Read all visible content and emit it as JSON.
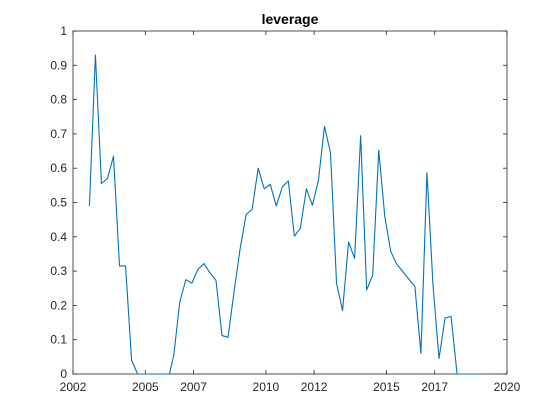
{
  "chart_data": {
    "type": "line",
    "title": "leverage",
    "xlabel": "",
    "ylabel": "",
    "xlim": [
      2002,
      2020
    ],
    "ylim": [
      0,
      1
    ],
    "grid": false,
    "legend": "none",
    "xticks": [
      2002,
      2005,
      2007,
      2010,
      2012,
      2015,
      2017,
      2020
    ],
    "yticks": [
      0,
      0.1,
      0.2,
      0.3,
      0.4,
      0.5,
      0.6,
      0.7,
      0.8,
      0.9,
      1
    ],
    "xtick_labels": [
      "2002",
      "2005",
      "2007",
      "2010",
      "2012",
      "2015",
      "2017",
      "2020"
    ],
    "ytick_labels": [
      "0",
      "0.1",
      "0.2",
      "0.3",
      "0.4",
      "0.5",
      "0.6",
      "0.7",
      "0.8",
      "0.9",
      "1"
    ],
    "series": [
      {
        "color": "#0072BD",
        "x": [
          2002.68,
          2002.93,
          2003.18,
          2003.43,
          2003.68,
          2003.93,
          2004.18,
          2004.43,
          2004.68,
          2004.93,
          2005.5,
          2006.0,
          2006.18,
          2006.43,
          2006.68,
          2006.93,
          2007.18,
          2007.43,
          2007.68,
          2007.93,
          2008.18,
          2008.43,
          2008.68,
          2008.93,
          2009.18,
          2009.43,
          2009.68,
          2009.93,
          2010.18,
          2010.43,
          2010.68,
          2010.93,
          2011.18,
          2011.43,
          2011.68,
          2011.93,
          2012.18,
          2012.43,
          2012.68,
          2012.93,
          2013.18,
          2013.43,
          2013.68,
          2013.93,
          2014.18,
          2014.43,
          2014.68,
          2014.93,
          2015.18,
          2015.43,
          2016.18,
          2016.43,
          2016.68,
          2016.93,
          2017.18,
          2017.43,
          2017.68,
          2017.93,
          2018.5,
          2018.93
        ],
        "y": [
          0.49,
          0.93,
          0.555,
          0.57,
          0.635,
          0.315,
          0.315,
          0.04,
          0.0,
          0.0,
          0.0,
          0.0,
          0.055,
          0.21,
          0.275,
          0.265,
          0.305,
          0.322,
          0.295,
          0.273,
          0.112,
          0.107,
          0.24,
          0.365,
          0.465,
          0.48,
          0.6,
          0.54,
          0.553,
          0.49,
          0.545,
          0.563,
          0.402,
          0.425,
          0.54,
          0.492,
          0.565,
          0.722,
          0.645,
          0.265,
          0.185,
          0.385,
          0.337,
          0.695,
          0.245,
          0.288,
          0.652,
          0.46,
          0.357,
          0.32,
          0.255,
          0.06,
          0.587,
          0.26,
          0.045,
          0.163,
          0.168,
          0.0,
          0.0,
          0.0
        ]
      }
    ]
  }
}
